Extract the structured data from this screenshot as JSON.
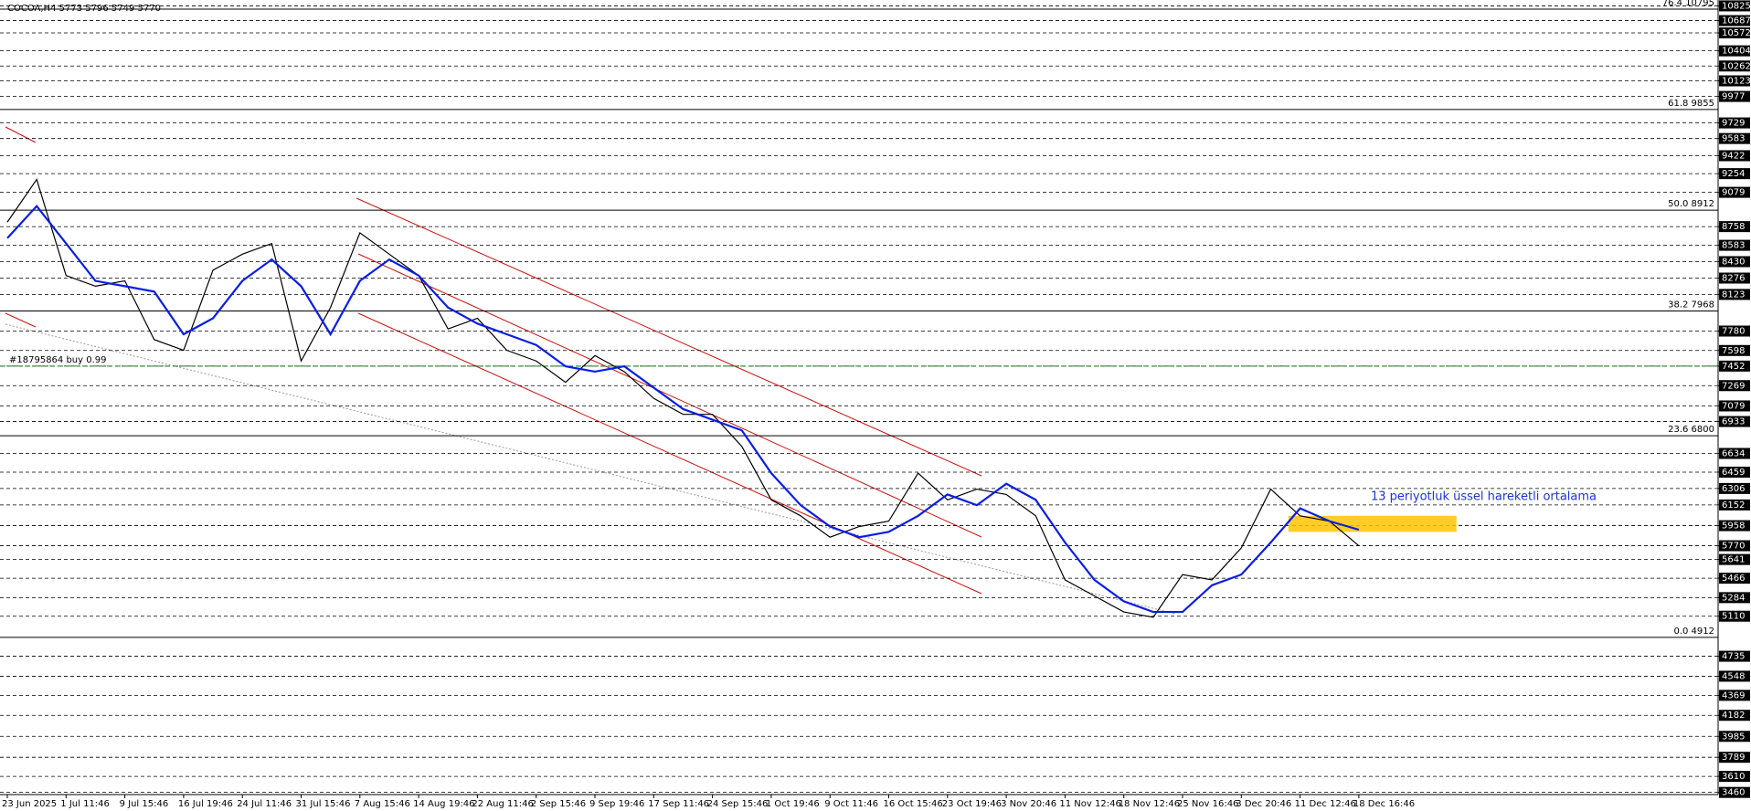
{
  "chart_data": {
    "type": "line",
    "title": "COCOA,H4  5773 5796 5749 5770",
    "annotation": "13 periyotluk üssel hareketli ortalama",
    "categories": [
      "23 Jun 2025",
      null,
      "1 Jul 11:46",
      null,
      "9 Jul 15:46",
      null,
      "16 Jul 19:46",
      null,
      "24 Jul 11:46",
      null,
      "31 Jul 15:46",
      null,
      "7 Aug 15:46",
      null,
      "14 Aug 19:46",
      null,
      "22 Aug 11:46",
      null,
      "2 Sep 15:46",
      null,
      "9 Sep 19:46",
      null,
      "17 Sep 11:46",
      null,
      "24 Sep 15:46",
      null,
      "1 Oct 19:46",
      null,
      "9 Oct 11:46",
      null,
      "16 Oct 15:46",
      null,
      "23 Oct 19:46",
      null,
      "3 Nov 20:46",
      null,
      "11 Nov 12:46",
      null,
      "18 Nov 12:46",
      null,
      "25 Nov 16:46",
      null,
      "3 Dec 20:46",
      null,
      "11 Dec 12:46",
      null,
      "18 Dec 16:46"
    ],
    "series": [
      {
        "name": "COCOA,H4",
        "color": "#000000",
        "values": [
          8800,
          9200,
          8300,
          8200,
          8250,
          7700,
          7600,
          8350,
          8500,
          8600,
          7500,
          8000,
          8700,
          8500,
          8300,
          7800,
          7900,
          7600,
          7500,
          7300,
          7550,
          7400,
          7150,
          7000,
          7000,
          6700,
          6200,
          6050,
          5850,
          5950,
          6000,
          6450,
          6200,
          6300,
          6250,
          6050,
          5450,
          5300,
          5150,
          5100,
          5500,
          5450,
          5750,
          6300,
          6050,
          6000,
          5770
        ]
      },
      {
        "name": "EMA 13",
        "color": "#0a1ee6",
        "values": [
          8650,
          8950,
          8600,
          8250,
          8200,
          8150,
          7750,
          7900,
          8250,
          8450,
          8200,
          7750,
          8250,
          8450,
          8300,
          8000,
          7850,
          7750,
          7650,
          7450,
          7400,
          7450,
          7250,
          7050,
          6950,
          6850,
          6450,
          6150,
          5950,
          5850,
          5900,
          6050,
          6250,
          6150,
          6350,
          6200,
          5800,
          5450,
          5250,
          5150,
          5150,
          5400,
          5500,
          5800,
          6120,
          6000,
          5920
        ]
      }
    ],
    "ylim": [
      3440,
      10880
    ],
    "yticks": [
      10825,
      10687,
      10572,
      10404,
      10262,
      10123,
      9977,
      9729,
      9583,
      9422,
      9254,
      9079,
      8758,
      8583,
      8430,
      8276,
      8123,
      7780,
      7598,
      7452,
      7269,
      7079,
      6933,
      6634,
      6459,
      6306,
      6152,
      5958,
      5770,
      5641,
      5466,
      5284,
      5110,
      4735,
      4548,
      4369,
      4182,
      3985,
      3789,
      3610,
      3460
    ],
    "fibo_levels": [
      {
        "value": 10795,
        "label": "76.4 10795"
      },
      {
        "value": 9855,
        "label": "61.8 9855"
      },
      {
        "value": 8912,
        "label": "50.0 8912"
      },
      {
        "value": 7968,
        "label": "38.2 7968"
      },
      {
        "value": 6800,
        "label": "23.6 6800"
      },
      {
        "value": 4912,
        "label": "0.0 4912"
      }
    ],
    "order_line": {
      "value": 7452,
      "label": "#18795864 buy 0.99",
      "color": "#1a7a1a"
    },
    "zone": {
      "low": 5900,
      "high": 6050,
      "color": "#ffc400"
    },
    "grid": true
  }
}
